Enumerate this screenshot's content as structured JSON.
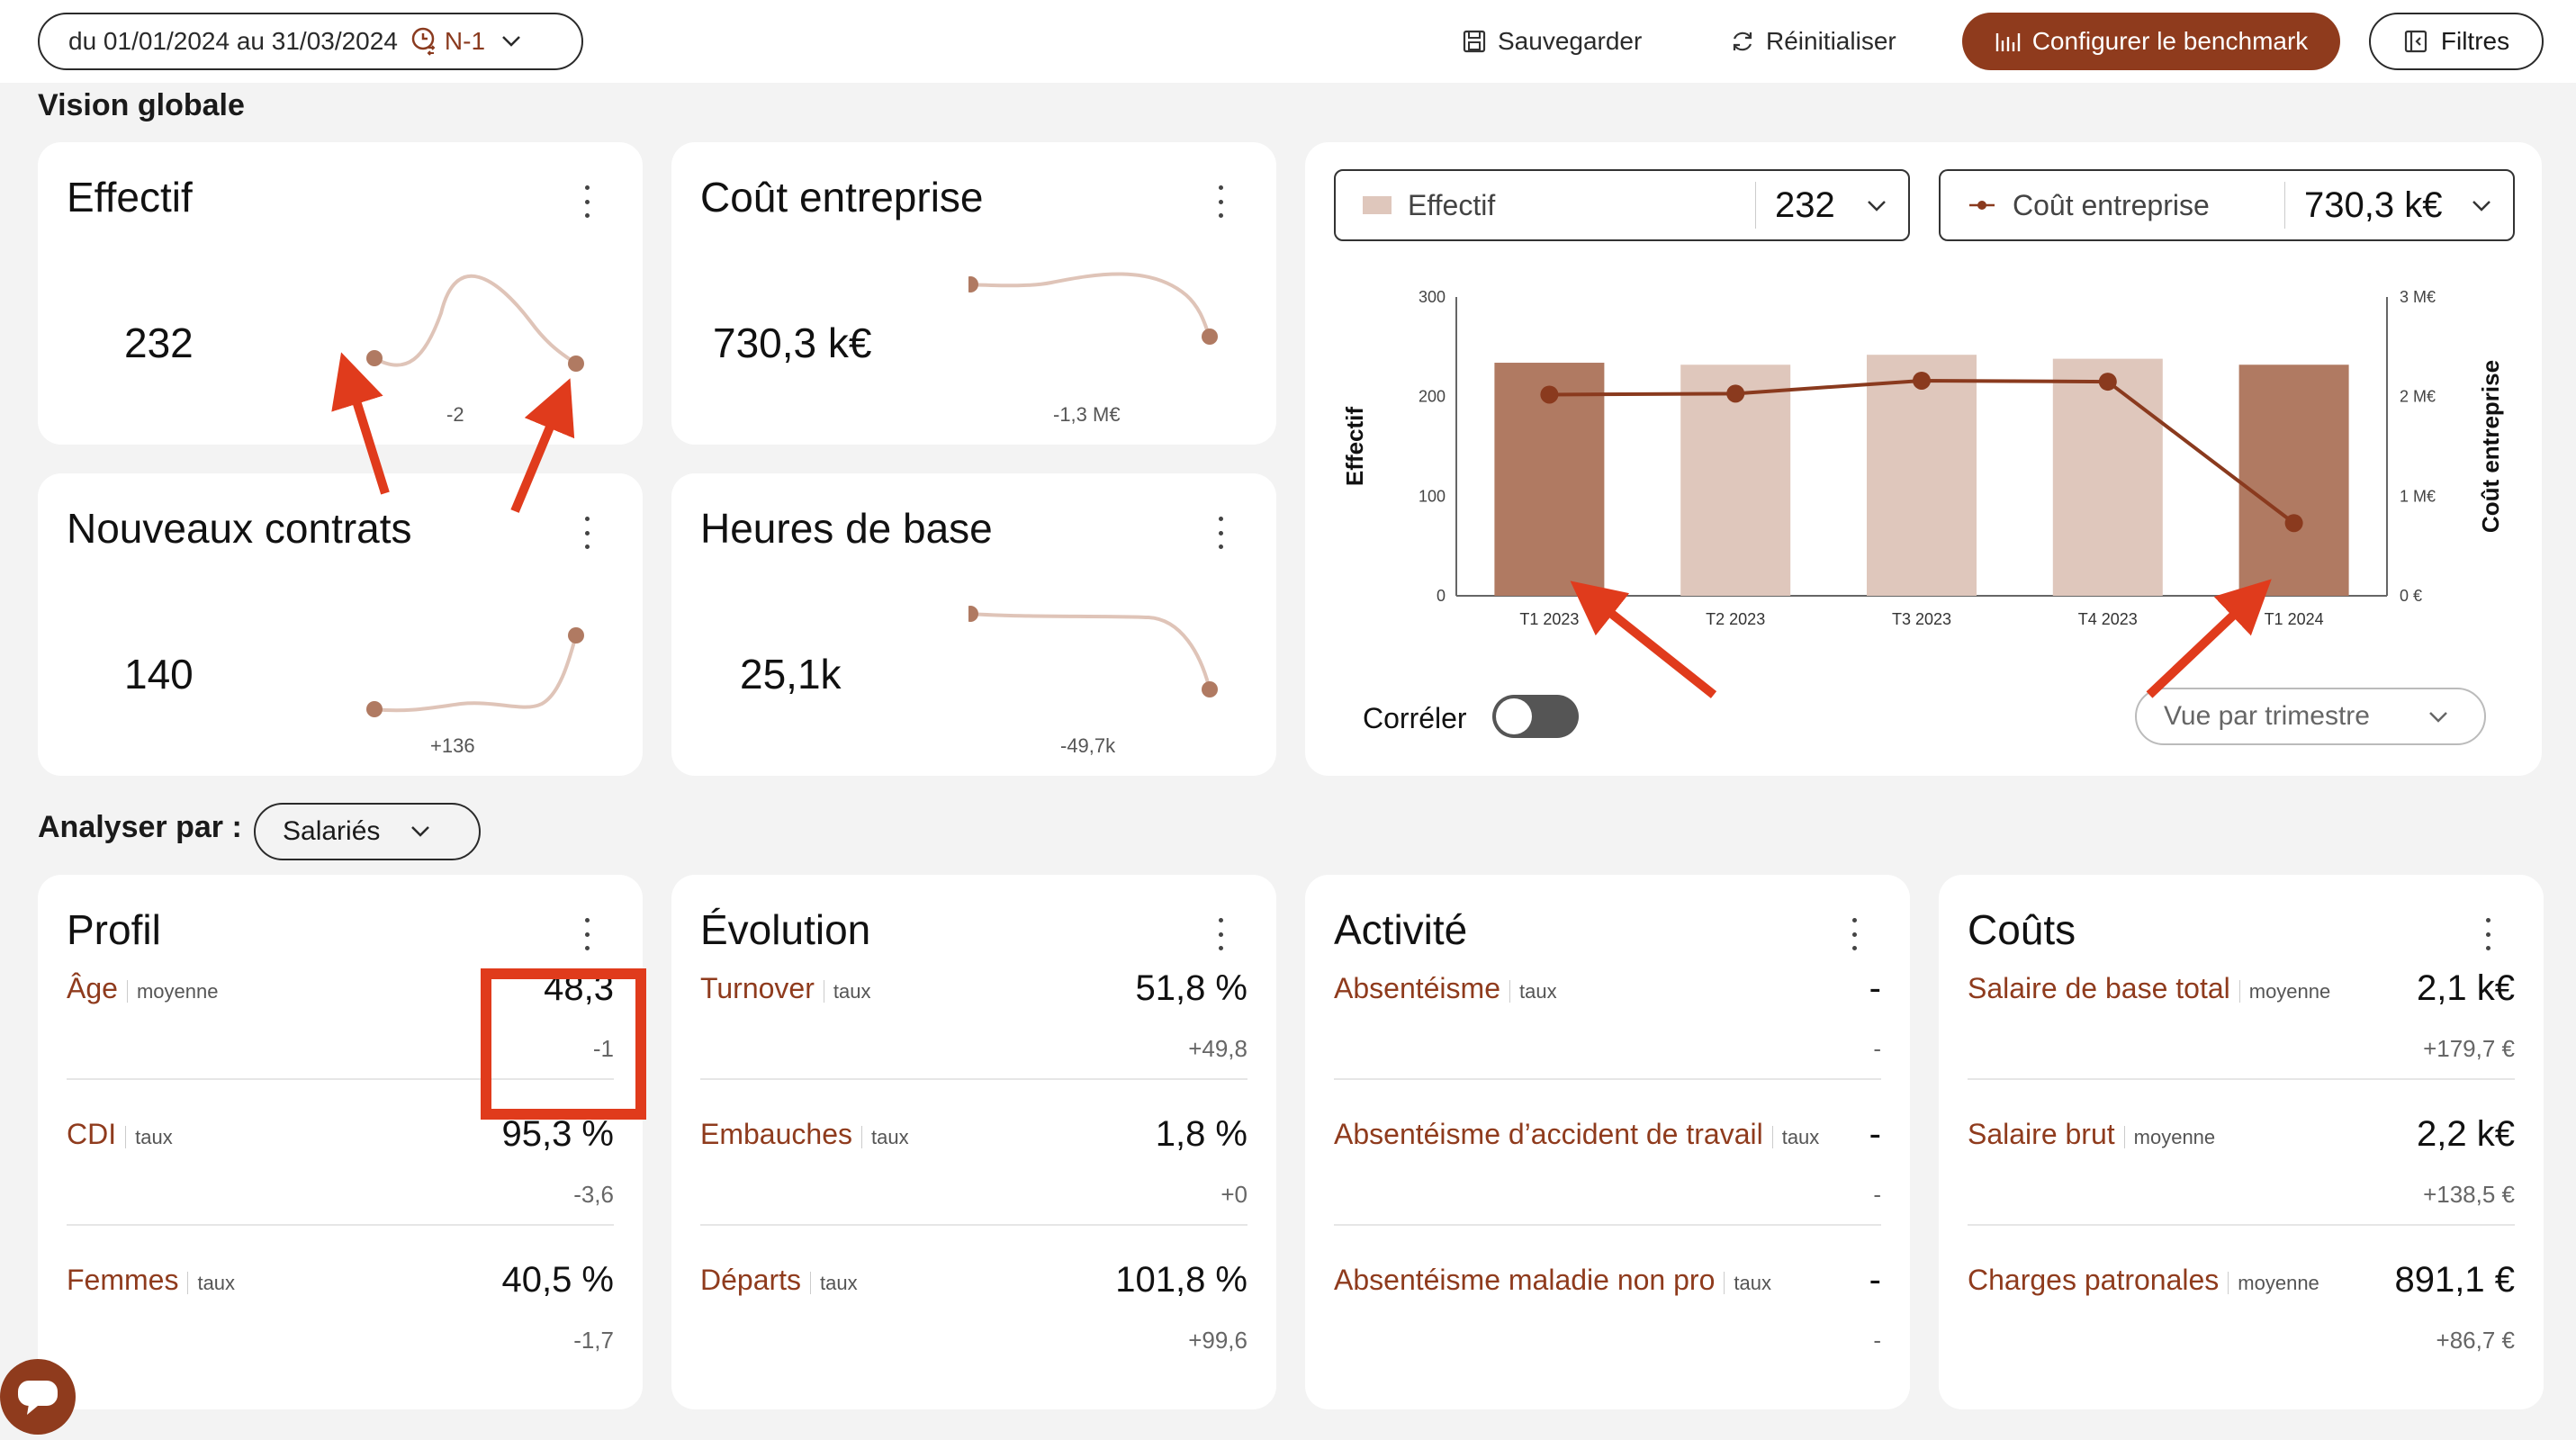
{
  "topbar": {
    "date_range": "du 01/01/2024 au 31/03/2024",
    "comparison": "N-1",
    "save": "Sauvegarder",
    "reset": "Réinitialiser",
    "benchmark": "Configurer le benchmark",
    "filters": "Filtres"
  },
  "vision_title": "Vision globale",
  "kpis": {
    "effectif": {
      "title": "Effectif",
      "value": "232",
      "delta": "-2"
    },
    "cout": {
      "title": "Coût entreprise",
      "value": "730,3 k€",
      "delta": "-1,3 M€"
    },
    "contrats": {
      "title": "Nouveaux contrats",
      "value": "140",
      "delta": "+136"
    },
    "heures": {
      "title": "Heures de base",
      "value": "25,1k",
      "delta": "-49,7k"
    }
  },
  "combo": {
    "left_select": {
      "label": "Effectif",
      "value": "232"
    },
    "right_select": {
      "label": "Coût entreprise",
      "value": "730,3 k€"
    },
    "correler": "Corréler",
    "view": "Vue par trimestre"
  },
  "chart_data": {
    "type": "bar",
    "categories": [
      "T1 2023",
      "T2 2023",
      "T3 2023",
      "T4 2023",
      "T1 2024"
    ],
    "series": [
      {
        "name": "Effectif",
        "type": "bar",
        "axis": "left",
        "values": [
          234,
          232,
          242,
          238,
          232
        ]
      },
      {
        "name": "Coût entreprise",
        "type": "line",
        "axis": "right",
        "values": [
          2.02,
          2.03,
          2.16,
          2.15,
          0.73
        ]
      }
    ],
    "ylabel": "Effectif",
    "ylabel_right": "Coût entreprise",
    "ylim": [
      0,
      300
    ],
    "ylim_right": [
      0,
      3
    ],
    "yticks": [
      "0",
      "100",
      "200",
      "300"
    ],
    "yticks_right": [
      "0 €",
      "1 M€",
      "2 M€",
      "3 M€"
    ],
    "colors": {
      "bar_highlight": "#b07a62",
      "bar_light": "#dfc7bc",
      "line": "#8a3a1e"
    }
  },
  "analyser": {
    "label": "Analyser par :",
    "value": "Salariés"
  },
  "panels": {
    "profil": {
      "title": "Profil",
      "rows": [
        {
          "label": "Âge",
          "unit": "moyenne",
          "value": "48,3",
          "delta": "-1"
        },
        {
          "label": "CDI",
          "unit": "taux",
          "value": "95,3 %",
          "delta": "-3,6"
        },
        {
          "label": "Femmes",
          "unit": "taux",
          "value": "40,5 %",
          "delta": "-1,7"
        }
      ]
    },
    "evolution": {
      "title": "Évolution",
      "rows": [
        {
          "label": "Turnover",
          "unit": "taux",
          "value": "51,8 %",
          "delta": "+49,8"
        },
        {
          "label": "Embauches",
          "unit": "taux",
          "value": "1,8 %",
          "delta": "+0"
        },
        {
          "label": "Départs",
          "unit": "taux",
          "value": "101,8 %",
          "delta": "+99,6"
        }
      ]
    },
    "activite": {
      "title": "Activité",
      "rows": [
        {
          "label": "Absentéisme",
          "unit": "taux",
          "value": "-",
          "delta": "-"
        },
        {
          "label": "Absentéisme d’accident de travail",
          "unit": "taux",
          "value": "-",
          "delta": "-"
        },
        {
          "label": "Absentéisme maladie non pro",
          "unit": "taux",
          "value": "-",
          "delta": "-"
        }
      ]
    },
    "couts": {
      "title": "Coûts",
      "rows": [
        {
          "label": "Salaire de base total",
          "unit": "moyenne",
          "value": "2,1 k€",
          "delta": "+179,7 €"
        },
        {
          "label": "Salaire brut",
          "unit": "moyenne",
          "value": "2,2 k€",
          "delta": "+138,5 €"
        },
        {
          "label": "Charges patronales",
          "unit": "moyenne",
          "value": "891,1 €",
          "delta": "+86,7 €"
        }
      ]
    }
  }
}
